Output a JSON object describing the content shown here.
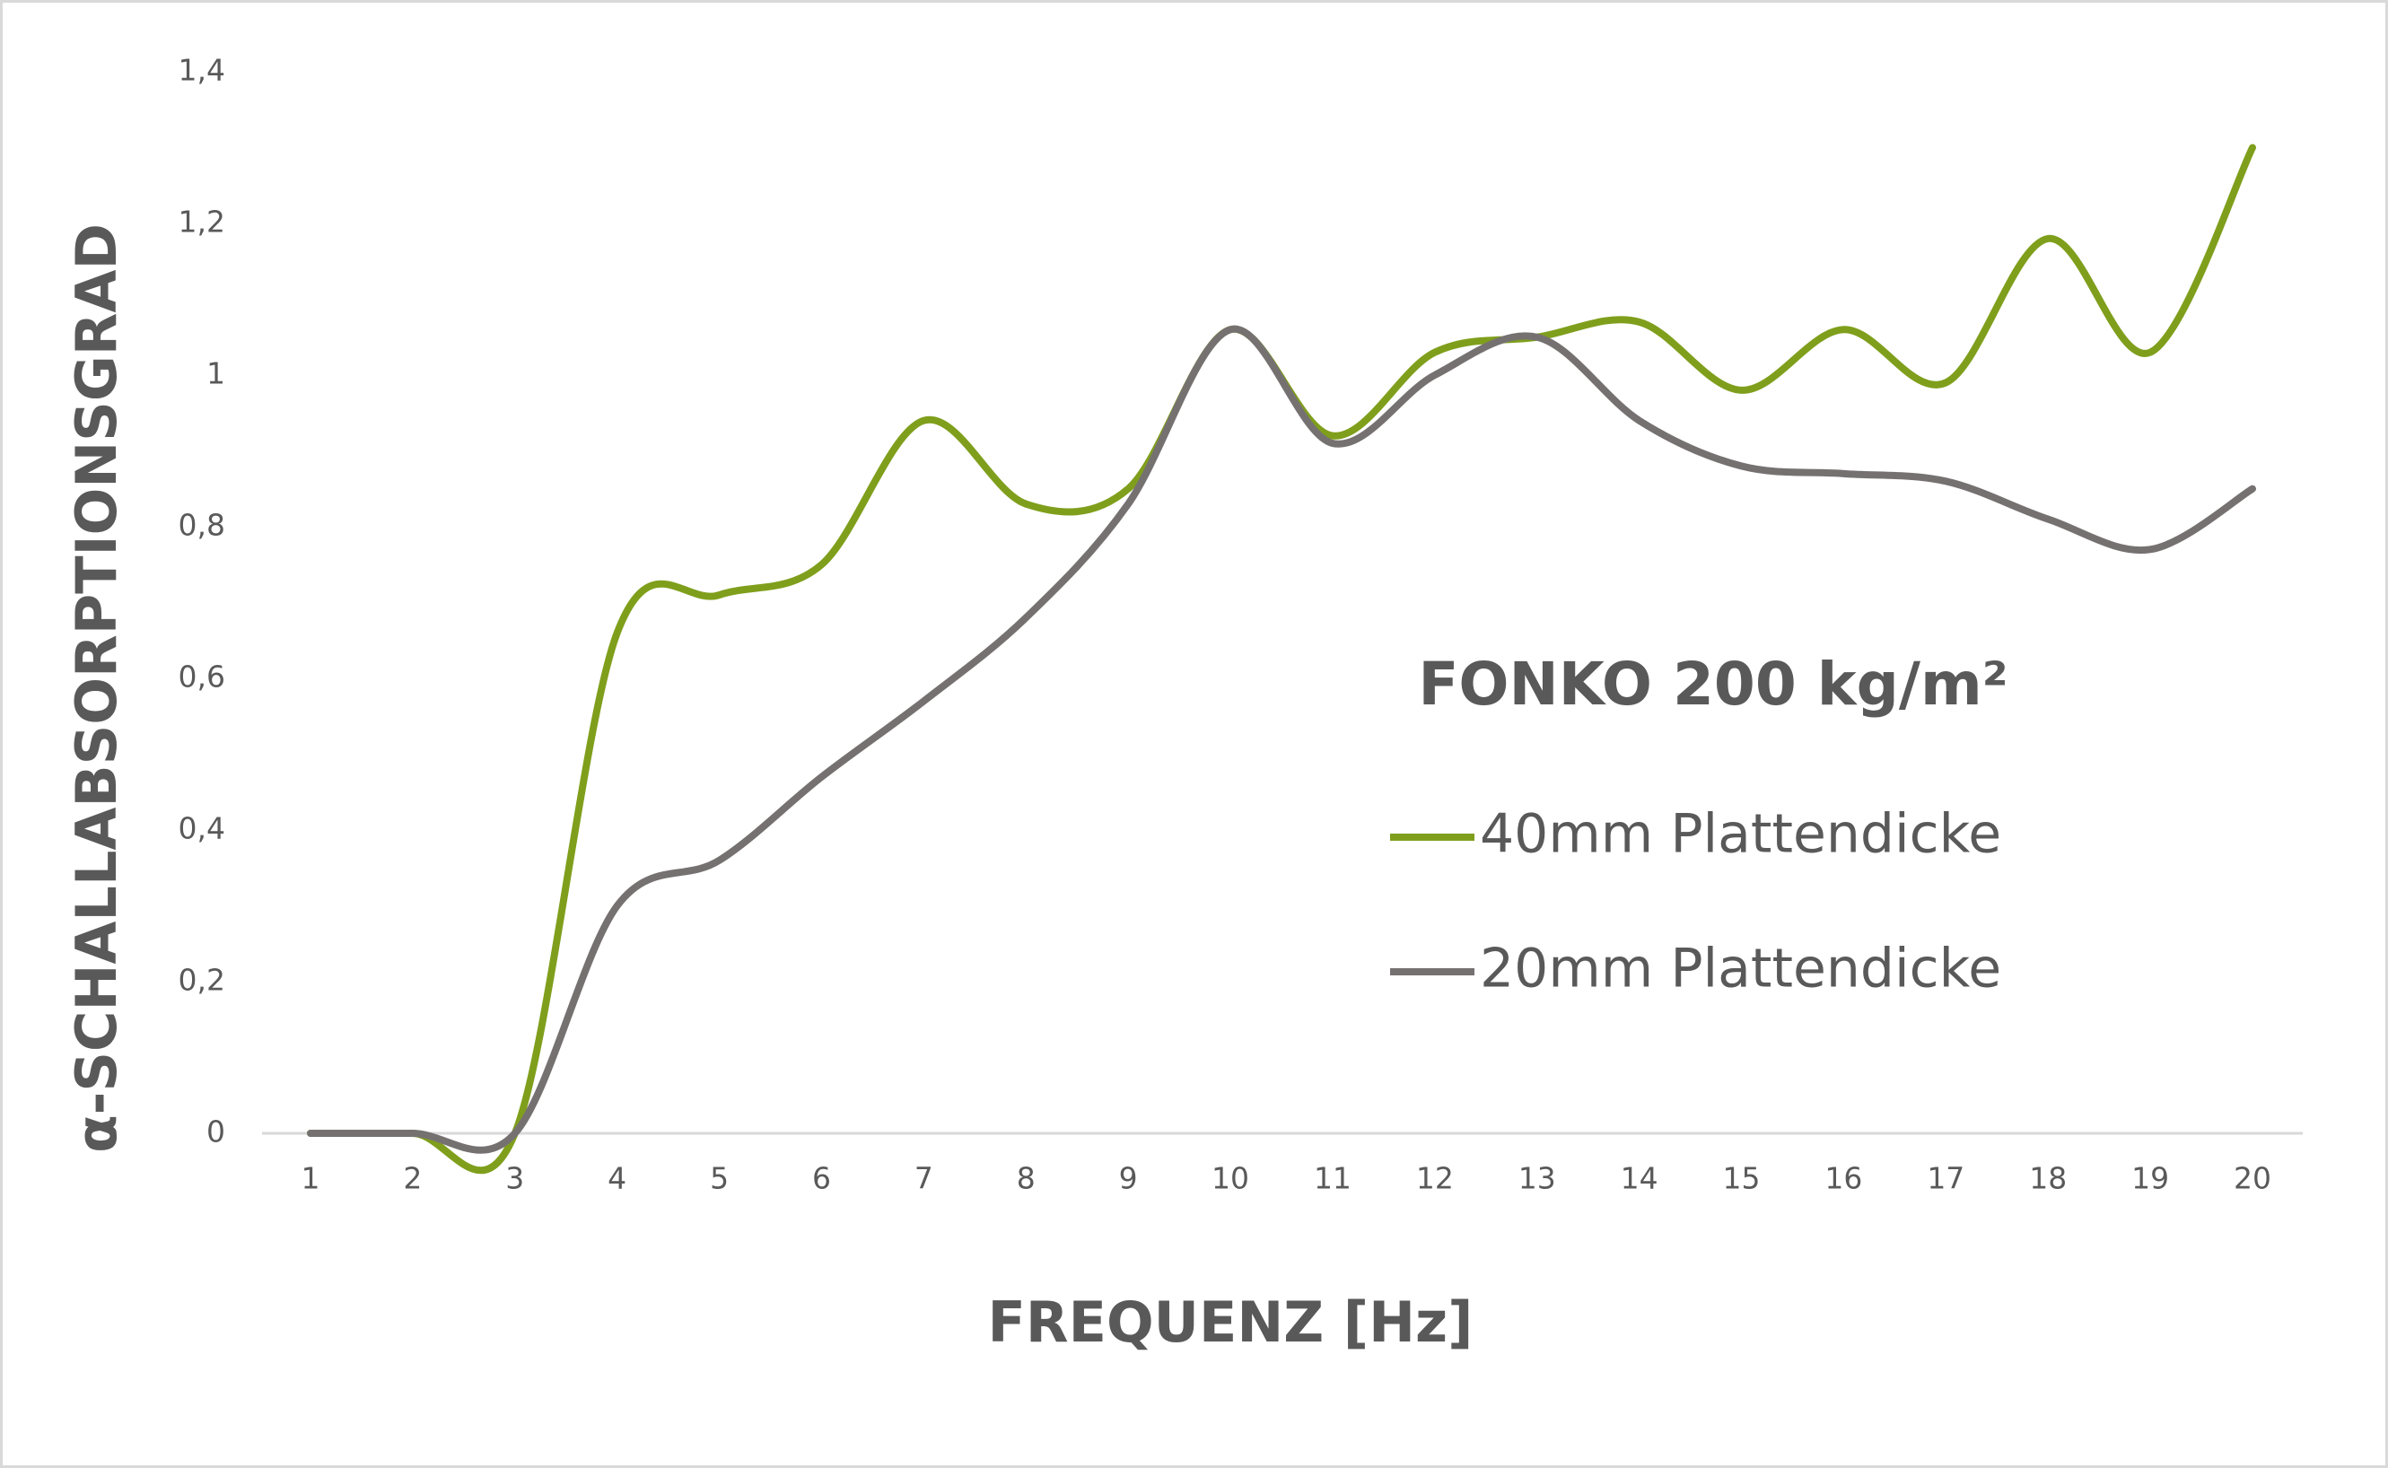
{
  "chart_data": {
    "type": "line",
    "title": "FONKO 200 kg/m²",
    "x_label": "FREQUENZ [Hz]",
    "y_label": "α-SCHALLABSORPTIONSGRAD",
    "categories": [
      "1",
      "2",
      "3",
      "4",
      "5",
      "6",
      "7",
      "8",
      "9",
      "10",
      "11",
      "12",
      "13",
      "14",
      "15",
      "16",
      "17",
      "18",
      "19",
      "20"
    ],
    "series": [
      {
        "name": "40mm Plattendicke",
        "color": "#7f9f1c",
        "values": [
          0,
          0,
          0,
          0.66,
          0.71,
          0.75,
          0.94,
          0.83,
          0.85,
          1.06,
          0.92,
          1.03,
          1.05,
          1.07,
          0.98,
          1.06,
          0.99,
          1.18,
          1.03,
          1.3
        ]
      },
      {
        "name": "20mm Plattendicke",
        "color": "#767171",
        "values": [
          0,
          0,
          0,
          0.3,
          0.36,
          0.47,
          0.57,
          0.68,
          0.83,
          1.06,
          0.91,
          1.0,
          1.05,
          0.94,
          0.88,
          0.87,
          0.86,
          0.81,
          0.77,
          0.85
        ]
      }
    ],
    "ylim": [
      0,
      1.4
    ],
    "yticks": [
      0,
      {
        "value": 0.2,
        "label": "0,2"
      },
      {
        "value": 0.4,
        "label": "0,4"
      },
      {
        "value": 0.6,
        "label": "0,6"
      },
      {
        "value": 0.8,
        "label": "0,8"
      },
      1,
      {
        "value": 1.2,
        "label": "1,2"
      },
      {
        "value": 1.4,
        "label": "1,4"
      }
    ],
    "smooth": true
  }
}
